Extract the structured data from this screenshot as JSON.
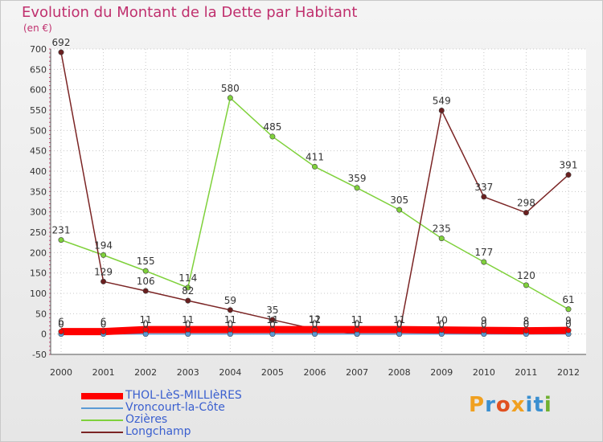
{
  "title": "Evolution du Montant de la Dette par Habitant",
  "subtitle": "(en €)",
  "logo": {
    "text": "Proxiti",
    "letters": [
      {
        "ch": "P",
        "color": "#f0a020"
      },
      {
        "ch": "r",
        "color": "#3a8fd0"
      },
      {
        "ch": "o",
        "color": "#e05020"
      },
      {
        "ch": "x",
        "color": "#f0a020"
      },
      {
        "ch": "i",
        "color": "#3a8fd0"
      },
      {
        "ch": "t",
        "color": "#3a8fd0"
      },
      {
        "ch": "i",
        "color": "#70b030"
      }
    ]
  },
  "chart_data": {
    "type": "line",
    "title": "Evolution du Montant de la Dette par Habitant",
    "ylabel": "(en €)",
    "xlabel": "",
    "categories": [
      "2000",
      "2001",
      "2002",
      "2003",
      "2004",
      "2005",
      "2006",
      "2007",
      "2008",
      "2009",
      "2010",
      "2011",
      "2012"
    ],
    "ylim": [
      -50,
      700
    ],
    "yticks": [
      -50,
      0,
      50,
      100,
      150,
      200,
      250,
      300,
      350,
      400,
      450,
      500,
      550,
      600,
      650,
      700
    ],
    "grid": true,
    "legend_position": "bottom-left",
    "series": [
      {
        "name": "THOL-LèS-MILLIèRES",
        "color": "#ff0000",
        "values": [
          6,
          6,
          11,
          11,
          11,
          11,
          11,
          11,
          11,
          10,
          9,
          8,
          9
        ],
        "labels_shown": true
      },
      {
        "name": "Vroncourt-la-Côte",
        "color": "#5b9bd5",
        "values": [
          0,
          0,
          0,
          0,
          0,
          0,
          0,
          0,
          0,
          0,
          0,
          0,
          0
        ],
        "labels_shown": true
      },
      {
        "name": "Ozières",
        "color": "#7fd13b",
        "values": [
          231,
          194,
          155,
          114,
          580,
          485,
          411,
          359,
          305,
          235,
          177,
          120,
          61
        ],
        "labels_shown": true
      },
      {
        "name": "Longchamp",
        "color": "#7b2525",
        "values": [
          692,
          129,
          106,
          82,
          59,
          35,
          12,
          0,
          0,
          549,
          337,
          298,
          391
        ],
        "labels_shown": true
      }
    ]
  }
}
